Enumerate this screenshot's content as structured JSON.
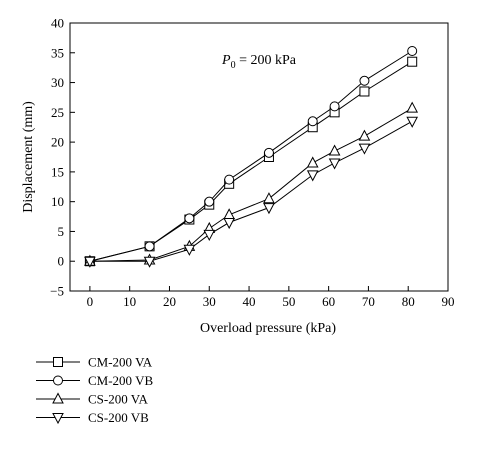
{
  "chart_data": {
    "type": "line",
    "title": "",
    "xlabel": "Overload pressure (kPa)",
    "ylabel": "Displacement (mm)",
    "xlim": [
      -5,
      90
    ],
    "ylim": [
      -5,
      40
    ],
    "xticks": [
      0,
      10,
      20,
      30,
      40,
      50,
      60,
      70,
      80,
      90
    ],
    "yticks": [
      -5,
      0,
      5,
      10,
      15,
      20,
      25,
      30,
      35,
      40
    ],
    "annotation": {
      "prefix": "P",
      "subscript": "0",
      "suffix": " = 200 kPa"
    },
    "legend_position": "below-left",
    "grid": false,
    "series": [
      {
        "name": "CM-200 VA",
        "marker": "square",
        "x": [
          0,
          15,
          25,
          30,
          35,
          45,
          56,
          61.5,
          69,
          81
        ],
        "y": [
          0,
          2.5,
          7.0,
          9.5,
          13.0,
          17.5,
          22.5,
          25.0,
          28.5,
          33.5
        ]
      },
      {
        "name": "CM-200 VB",
        "marker": "circle",
        "x": [
          0,
          15,
          25,
          30,
          35,
          45,
          56,
          61.5,
          69,
          81
        ],
        "y": [
          0,
          2.5,
          7.2,
          10.0,
          13.7,
          18.2,
          23.5,
          26.0,
          30.3,
          35.3
        ]
      },
      {
        "name": "CS-200 VA",
        "marker": "triangle-up",
        "x": [
          0,
          15,
          25,
          30,
          35,
          45,
          56,
          61.5,
          69,
          81
        ],
        "y": [
          0,
          0.2,
          2.5,
          5.5,
          7.8,
          10.5,
          16.5,
          18.5,
          21.0,
          25.7
        ]
      },
      {
        "name": "CS-200 VB",
        "marker": "triangle-down",
        "x": [
          0,
          15,
          25,
          30,
          35,
          45,
          56,
          61.5,
          69,
          81
        ],
        "y": [
          0,
          0.0,
          2.0,
          4.5,
          6.5,
          9.0,
          14.5,
          16.5,
          19.0,
          23.5
        ]
      }
    ]
  }
}
